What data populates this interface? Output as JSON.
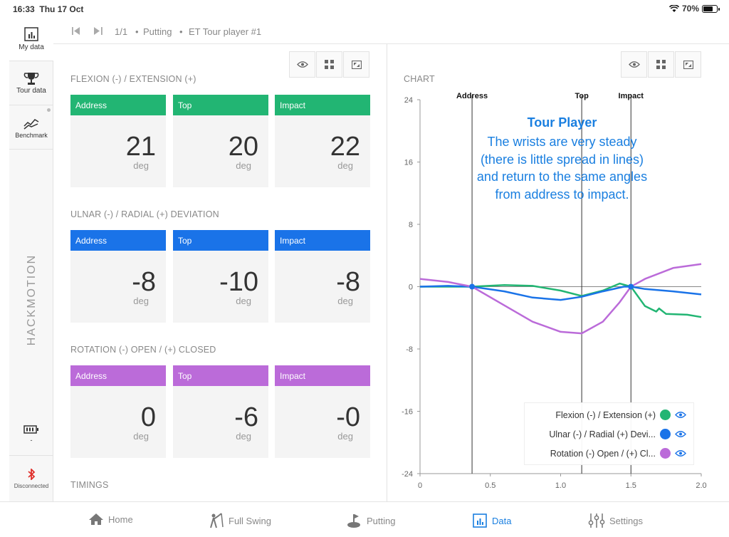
{
  "status": {
    "time": "16:33",
    "date": "Thu 17 Oct",
    "battery": "70%"
  },
  "sidebar": {
    "items": [
      {
        "label": "My data"
      },
      {
        "label": "Tour data"
      },
      {
        "label": "Benchmark"
      }
    ],
    "brand": "HACKMOTION",
    "battery_label": "-",
    "bluetooth_label": "Disconnected"
  },
  "nav": {
    "counter": "1/1",
    "crumb1": "Putting",
    "crumb2": "ET Tour player #1"
  },
  "sections": [
    {
      "title": "FLEXION (-) / EXTENSION (+)",
      "color": "#22b573",
      "cards": [
        {
          "label": "Address",
          "value": "21",
          "unit": "deg"
        },
        {
          "label": "Top",
          "value": "20",
          "unit": "deg"
        },
        {
          "label": "Impact",
          "value": "22",
          "unit": "deg"
        }
      ]
    },
    {
      "title": "ULNAR (-) / RADIAL (+) DEVIATION",
      "color": "#1a73e8",
      "cards": [
        {
          "label": "Address",
          "value": "-8",
          "unit": "deg"
        },
        {
          "label": "Top",
          "value": "-10",
          "unit": "deg"
        },
        {
          "label": "Impact",
          "value": "-8",
          "unit": "deg"
        }
      ]
    },
    {
      "title": "ROTATION (-) OPEN / (+) CLOSED",
      "color": "#bb6bd9",
      "cards": [
        {
          "label": "Address",
          "value": "0",
          "unit": "deg"
        },
        {
          "label": "Top",
          "value": "-6",
          "unit": "deg"
        },
        {
          "label": "Impact",
          "value": "-0",
          "unit": "deg"
        }
      ]
    }
  ],
  "timings_title": "TIMINGS",
  "chart_title": "CHART",
  "chart_data": {
    "type": "line",
    "xlim": [
      0,
      2.0
    ],
    "ylim": [
      -24,
      24
    ],
    "xticks": [
      "0",
      "0.5",
      "1.0",
      "1.5",
      "2.0"
    ],
    "yticks": [
      "24",
      "16",
      "8",
      "0",
      "-8",
      "-16",
      "-24"
    ],
    "markers": [
      {
        "name": "Address",
        "x": 0.37
      },
      {
        "name": "Top",
        "x": 1.15
      },
      {
        "name": "Impact",
        "x": 1.5
      }
    ],
    "annotation": {
      "title": "Tour Player",
      "text": "The wrists are very steady (there is little spread in lines) and return to the same angles from address to impact."
    },
    "series": [
      {
        "name": "Flexion (-) / Extension (+)",
        "color": "#22b573",
        "x": [
          0,
          0.2,
          0.37,
          0.6,
          0.8,
          1.0,
          1.15,
          1.3,
          1.42,
          1.5,
          1.6,
          1.68,
          1.7,
          1.75,
          1.9,
          2.0
        ],
        "y": [
          0,
          0,
          0,
          0.2,
          0.1,
          -0.5,
          -1.2,
          -0.5,
          0.4,
          0,
          -2.5,
          -3.2,
          -2.8,
          -3.5,
          -3.6,
          -3.9
        ]
      },
      {
        "name": "Ulnar (-) / Radial (+) Devi...",
        "color": "#1a73e8",
        "x": [
          0,
          0.2,
          0.37,
          0.6,
          0.8,
          1.0,
          1.15,
          1.3,
          1.45,
          1.5,
          1.6,
          1.8,
          2.0
        ],
        "y": [
          0,
          0.1,
          0,
          -0.6,
          -1.4,
          -1.7,
          -1.3,
          -0.6,
          0,
          0,
          -0.3,
          -0.6,
          -1.0
        ]
      },
      {
        "name": "Rotation (-) Open / (+) Cl...",
        "color": "#bb6bd9",
        "x": [
          0,
          0.2,
          0.37,
          0.6,
          0.8,
          1.0,
          1.15,
          1.3,
          1.42,
          1.5,
          1.6,
          1.8,
          2.0
        ],
        "y": [
          1.0,
          0.6,
          0,
          -2.4,
          -4.5,
          -5.8,
          -6.0,
          -4.5,
          -2.0,
          0,
          1.0,
          2.4,
          2.9
        ]
      }
    ]
  },
  "tabs": [
    {
      "label": "Home"
    },
    {
      "label": "Full Swing"
    },
    {
      "label": "Putting"
    },
    {
      "label": "Data"
    },
    {
      "label": "Settings"
    }
  ]
}
